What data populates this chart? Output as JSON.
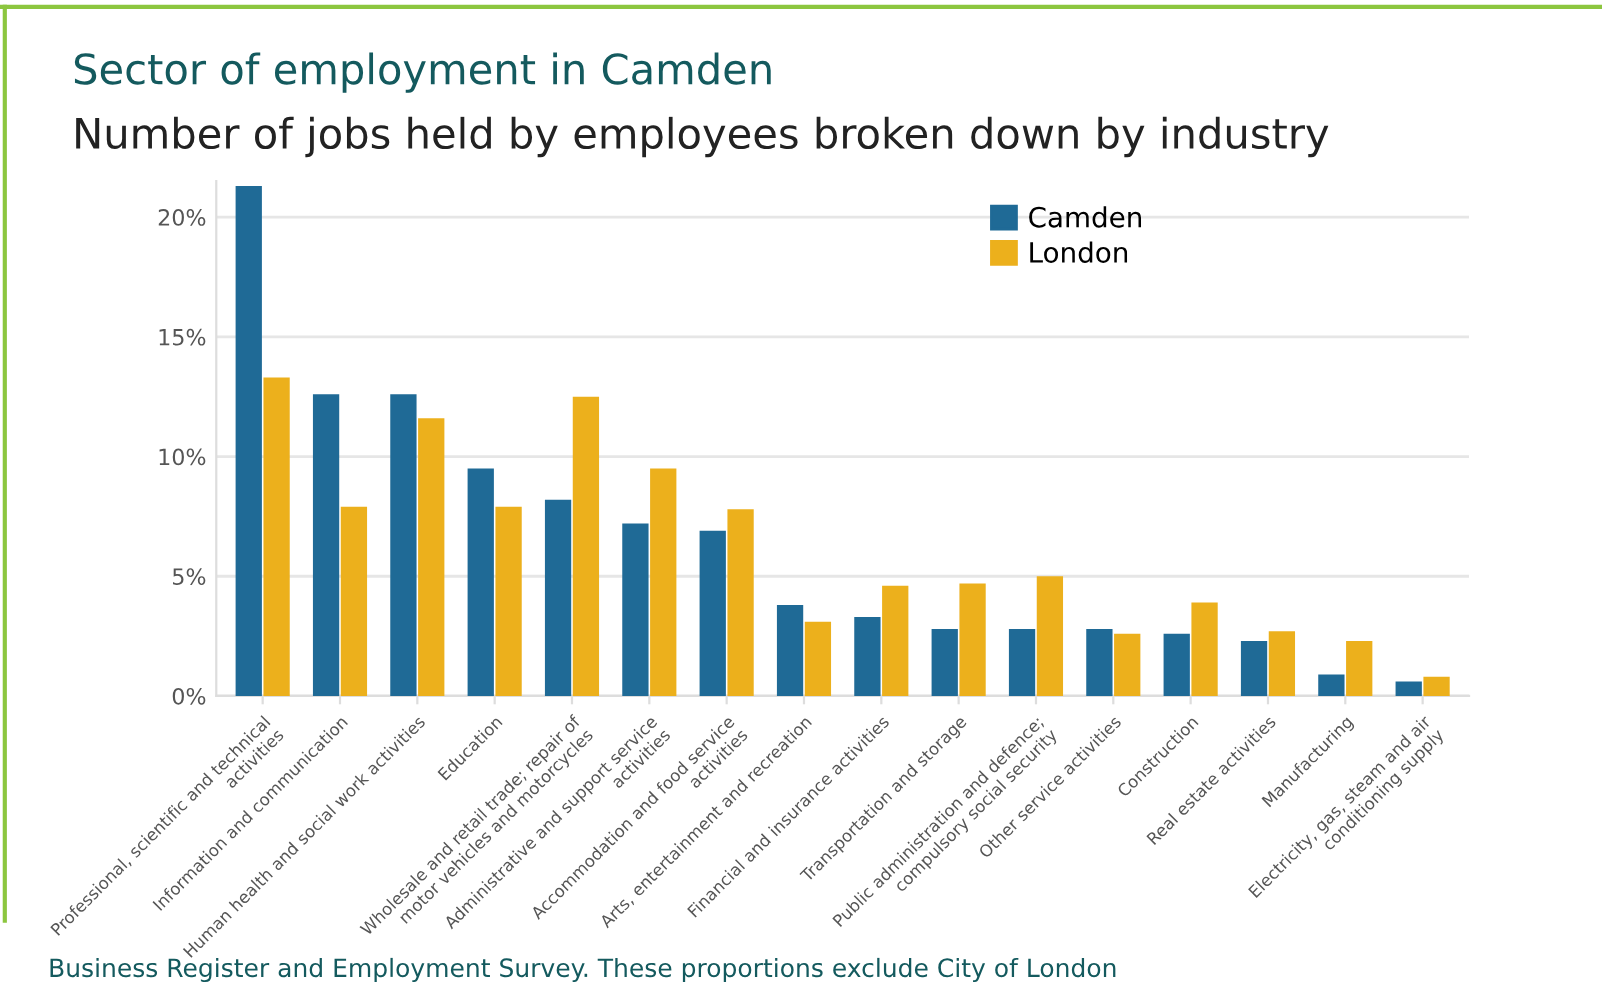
{
  "chart_data": {
    "type": "bar",
    "title": "Sector of employment in Camden",
    "subtitle": "Number of jobs held by employees broken down by industry",
    "categories": [
      "Professional, scientific and technical\nactivities",
      "Information and communication",
      "Human health and social work activities",
      "Education",
      "Wholesale and retail trade; repair of\nmotor vehicles and motorcycles",
      "Administrative and support service\nactivities",
      "Accommodation and food service\nactivities",
      "Arts, entertainment and recreation",
      "Financial and insurance activities",
      "Transportation and storage",
      "Public administration and defence;\ncompulsory social security",
      "Other service activities",
      "Construction",
      "Real estate activities",
      "Manufacturing",
      "Electricity, gas, steam and air\nconditioning supply"
    ],
    "series": [
      {
        "name": "Camden",
        "color": "#1f6a96",
        "values": [
          21.3,
          12.6,
          12.6,
          9.5,
          8.2,
          7.2,
          6.9,
          3.8,
          3.3,
          2.8,
          2.8,
          2.8,
          2.6,
          2.3,
          0.9,
          0.6
        ]
      },
      {
        "name": "London",
        "color": "#ecb01c",
        "values": [
          13.3,
          7.9,
          11.6,
          7.9,
          12.5,
          9.5,
          7.8,
          3.1,
          4.6,
          4.7,
          5.0,
          2.6,
          3.9,
          2.7,
          2.3,
          0.8
        ]
      }
    ],
    "ylim": [
      0,
      21.5
    ],
    "yticks": [
      {
        "value": 0,
        "label": "0%"
      },
      {
        "value": 5,
        "label": "5%"
      },
      {
        "value": 10,
        "label": "10%"
      },
      {
        "value": 15,
        "label": "15%"
      },
      {
        "value": 20,
        "label": "20%"
      }
    ],
    "grid": "y",
    "legend": "top right",
    "annotations": [
      "Business Register and Employment Survey. These proportions exclude City of London"
    ]
  }
}
